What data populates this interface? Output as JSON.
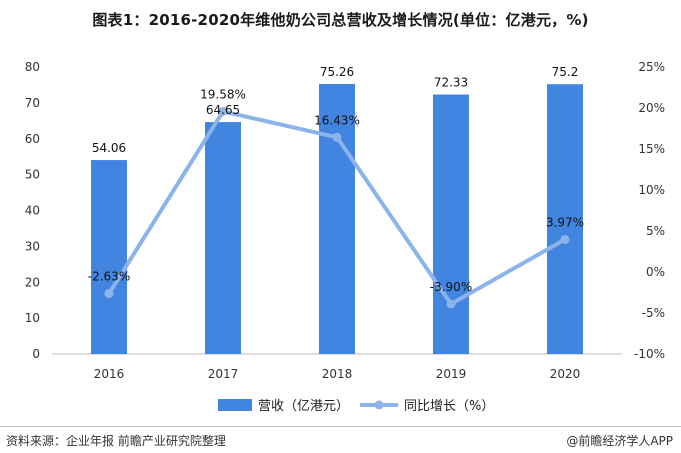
{
  "chart_data": {
    "type": "bar+line",
    "title": "图表1：2016-2020年维他奶公司总营收及增长情况(单位：亿港元，%)",
    "categories": [
      "2016",
      "2017",
      "2018",
      "2019",
      "2020"
    ],
    "series": [
      {
        "name": "营收（亿港元）",
        "type": "bar",
        "axis": "left",
        "values": [
          54.06,
          64.65,
          75.26,
          72.33,
          75.2
        ],
        "labels": [
          "54.06",
          "64.65",
          "75.26",
          "72.33",
          "75.2"
        ],
        "color": "#4285e0"
      },
      {
        "name": "同比增长（%）",
        "type": "line",
        "axis": "right",
        "values": [
          -2.63,
          19.58,
          16.43,
          -3.9,
          3.97
        ],
        "labels": [
          "-2.63%",
          "19.58%",
          "16.43%",
          "-3.90%",
          "3.97%"
        ],
        "color": "#8db4ea"
      }
    ],
    "y_left": {
      "min": 0,
      "max": 80,
      "ticks": [
        "0",
        "10",
        "20",
        "30",
        "40",
        "50",
        "60",
        "70",
        "80"
      ]
    },
    "y_right": {
      "min": -10,
      "max": 25,
      "ticks": [
        "-10%",
        "-5%",
        "0%",
        "5%",
        "10%",
        "15%",
        "20%",
        "25%"
      ]
    },
    "grid": false,
    "legend_position": "bottom-center"
  },
  "footer": {
    "source": "资料来源：企业年报 前瞻产业研究院整理",
    "brand": "@前瞻经济学人APP"
  }
}
